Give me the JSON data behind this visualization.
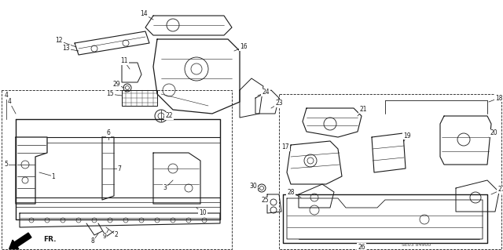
{
  "bg_color": "#ffffff",
  "line_color": "#1a1a1a",
  "fig_width": 6.4,
  "fig_height": 3.19,
  "dpi": 100,
  "watermark": "SE03 84900",
  "fr_label": "FR."
}
